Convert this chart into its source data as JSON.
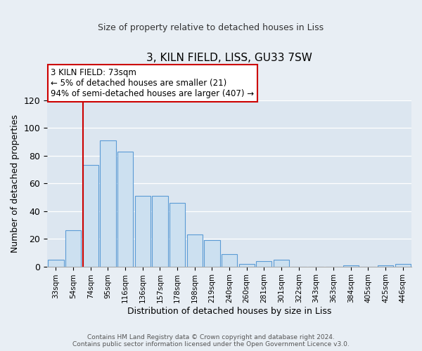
{
  "title": "3, KILN FIELD, LISS, GU33 7SW",
  "subtitle": "Size of property relative to detached houses in Liss",
  "xlabel": "Distribution of detached houses by size in Liss",
  "ylabel": "Number of detached properties",
  "bar_labels": [
    "33sqm",
    "54sqm",
    "74sqm",
    "95sqm",
    "116sqm",
    "136sqm",
    "157sqm",
    "178sqm",
    "198sqm",
    "219sqm",
    "240sqm",
    "260sqm",
    "281sqm",
    "301sqm",
    "322sqm",
    "343sqm",
    "363sqm",
    "384sqm",
    "405sqm",
    "425sqm",
    "446sqm"
  ],
  "bar_values": [
    5,
    26,
    73,
    91,
    83,
    51,
    51,
    46,
    23,
    19,
    9,
    2,
    4,
    5,
    0,
    0,
    0,
    1,
    0,
    1,
    2
  ],
  "bar_color": "#cce0f0",
  "bar_edge_color": "#5b9bd5",
  "highlight_bar_index": 2,
  "annotation_title": "3 KILN FIELD: 73sqm",
  "annotation_line1": "← 5% of detached houses are smaller (21)",
  "annotation_line2": "94% of semi-detached houses are larger (407) →",
  "annotation_box_color": "#ffffff",
  "annotation_box_edge_color": "#cc0000",
  "red_line_color": "#cc0000",
  "ylim": [
    0,
    120
  ],
  "yticks": [
    0,
    20,
    40,
    60,
    80,
    100,
    120
  ],
  "footer1": "Contains HM Land Registry data © Crown copyright and database right 2024.",
  "footer2": "Contains public sector information licensed under the Open Government Licence v3.0.",
  "background_color": "#e8eef4",
  "plot_background": "#dce6f0"
}
